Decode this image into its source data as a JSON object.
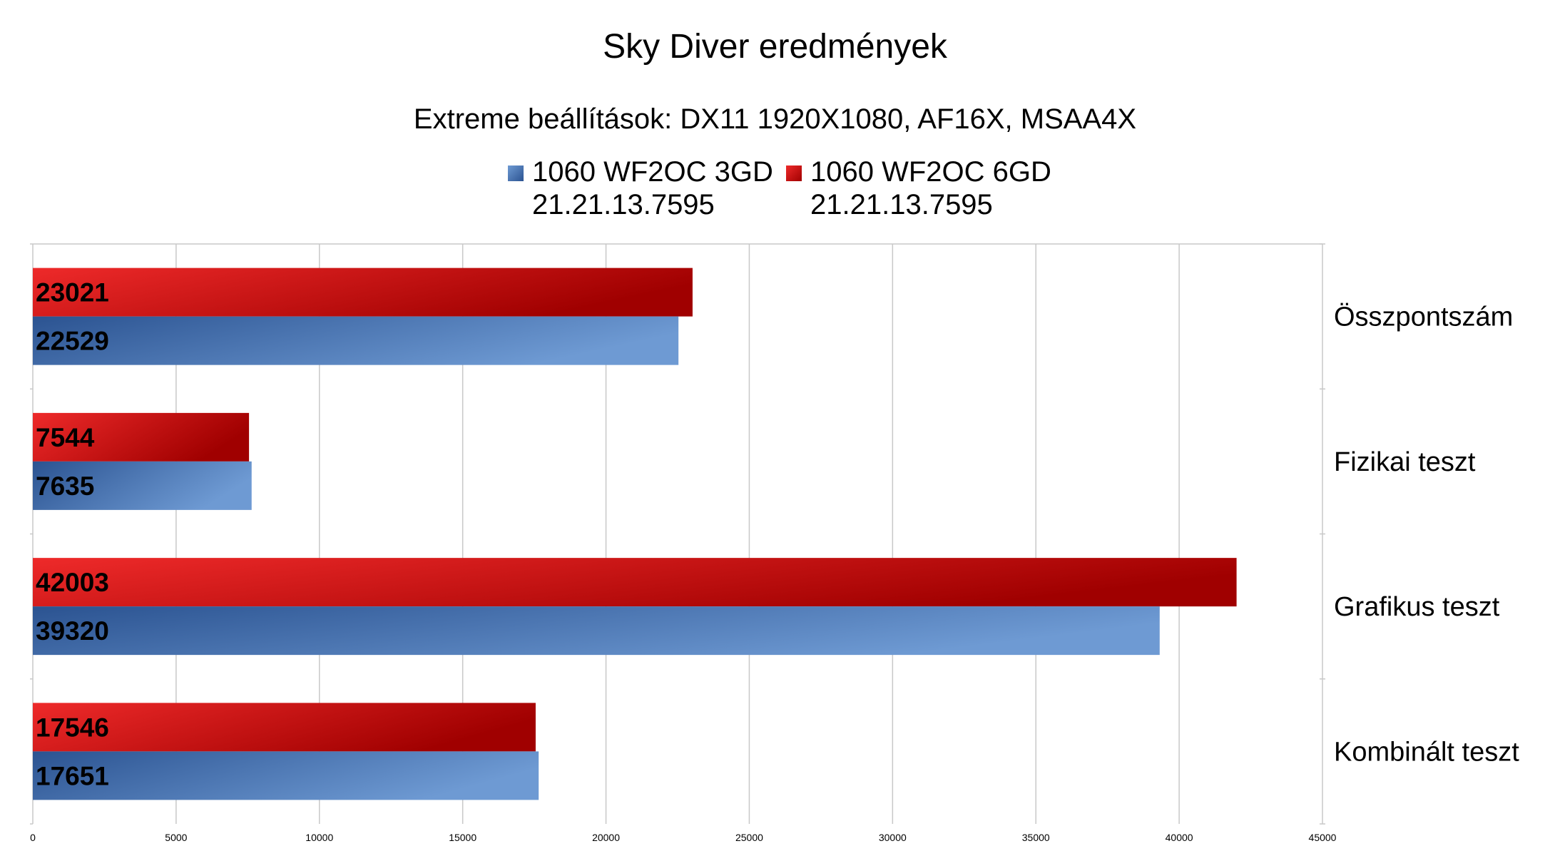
{
  "chart_data": {
    "type": "bar",
    "orientation": "horizontal",
    "title": "Sky Diver eredmények",
    "subtitle": "Extreme beállítások: DX11 1920X1080, AF16X, MSAA4X",
    "categories": [
      "Összpontszám",
      "Fizikai teszt",
      "Grafikus teszt",
      "Kombinált teszt"
    ],
    "series": [
      {
        "name_line1": "1060 WF2OC 3GD",
        "name_line2": "21.21.13.7595",
        "name": "1060 WF2OC 3GD 21.21.13.7595",
        "color": "#3a64a3",
        "color_light": "#6e9ad3",
        "color_dark": "#2b5391",
        "values": [
          22529,
          7635,
          39320,
          17651
        ]
      },
      {
        "name_line1": "1060 WF2OC 6GD",
        "name_line2": "21.21.13.7595",
        "name": "1060 WF2OC 6GD 21.21.13.7595",
        "color": "#d81f1f",
        "color_light": "#ee2a2a",
        "color_dark": "#a00000",
        "values": [
          23021,
          7544,
          42003,
          17546
        ]
      }
    ],
    "xlim": [
      0,
      45000
    ],
    "xticks": [
      0,
      5000,
      10000,
      15000,
      20000,
      25000,
      30000,
      35000,
      40000,
      45000
    ],
    "grid": true,
    "legend_position": "top",
    "category_axis": "right",
    "data_labels": "inside-base"
  }
}
